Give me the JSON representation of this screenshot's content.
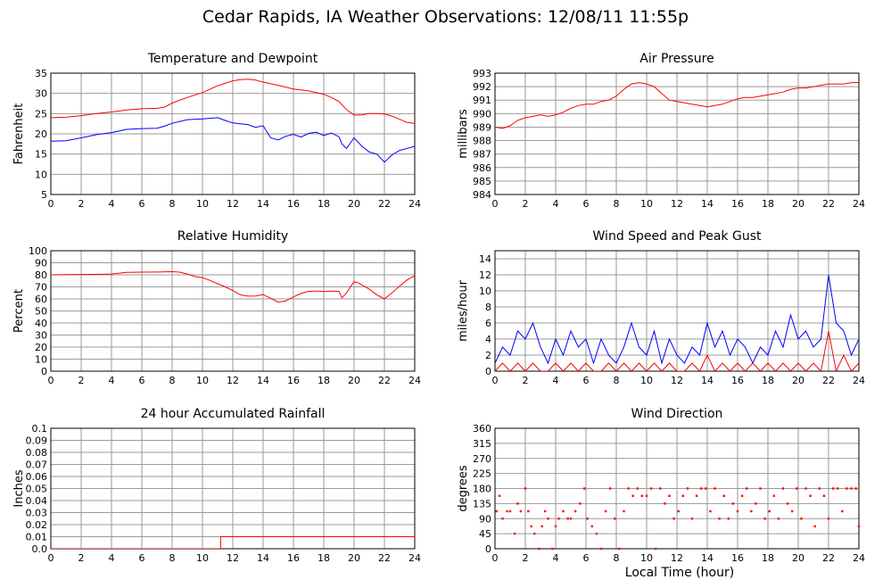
{
  "title": "Cedar Rapids, IA Weather Observations: 12/08/11 11:55p",
  "global_xlabel": "Local Time (hour)",
  "colors": {
    "red": "#ff0000",
    "blue": "#0000ff",
    "grid": "#9a9a9a"
  },
  "chart_data": [
    {
      "id": "temp",
      "type": "line",
      "title": "Temperature and Dewpoint",
      "xlabel": "",
      "ylabel": "Fahrenheit",
      "xlim": [
        0,
        24
      ],
      "ylim": [
        5,
        35
      ],
      "xticks": [
        0,
        2,
        4,
        6,
        8,
        10,
        12,
        14,
        16,
        18,
        20,
        22,
        24
      ],
      "yticks": [
        5,
        10,
        15,
        20,
        25,
        30,
        35
      ],
      "grid": true,
      "series": [
        {
          "color": "#ff0000",
          "x": [
            0,
            1,
            2,
            3,
            4,
            5,
            6,
            7,
            7.5,
            8,
            9,
            10,
            11,
            12,
            12.5,
            13,
            13.5,
            14,
            15,
            16,
            17,
            18,
            18.5,
            19,
            19.5,
            20,
            20.5,
            21,
            21.5,
            22,
            22.5,
            23,
            23.5,
            24
          ],
          "y": [
            24,
            24.1,
            24.5,
            25,
            25.4,
            25.9,
            26.2,
            26.3,
            26.6,
            27.6,
            29,
            30.2,
            31.9,
            33.1,
            33.4,
            33.5,
            33.3,
            32.8,
            32,
            31.1,
            30.6,
            29.8,
            29,
            28,
            26,
            24.6,
            24.7,
            25,
            25,
            24.9,
            24.4,
            23.6,
            22.8,
            22.6
          ]
        },
        {
          "color": "#0000ff",
          "x": [
            0,
            1,
            2,
            3,
            4,
            5,
            6,
            7,
            7.5,
            8,
            9,
            10,
            11,
            11.5,
            12,
            12.5,
            13,
            13.5,
            14,
            14.5,
            15,
            15.5,
            16,
            16.5,
            17,
            17.5,
            18,
            18.5,
            19,
            19.2,
            19.5,
            20,
            20.5,
            21,
            21.5,
            22,
            22.5,
            23,
            23.5,
            24
          ],
          "y": [
            18.2,
            18.3,
            19,
            19.8,
            20.3,
            21.1,
            21.3,
            21.4,
            21.9,
            22.6,
            23.5,
            23.7,
            24,
            23.3,
            22.7,
            22.5,
            22.3,
            21.6,
            22,
            19,
            18.5,
            19.4,
            19.9,
            19.2,
            20.1,
            20.4,
            19.6,
            20.2,
            19.3,
            17.5,
            16.4,
            19,
            17,
            15.5,
            15,
            13,
            14.8,
            15.9,
            16.4,
            16.9
          ]
        }
      ]
    },
    {
      "id": "pressure",
      "type": "line",
      "title": "Air Pressure",
      "xlabel": "",
      "ylabel": "millibars",
      "xlim": [
        0,
        24
      ],
      "ylim": [
        984,
        993
      ],
      "xticks": [
        0,
        2,
        4,
        6,
        8,
        10,
        12,
        14,
        16,
        18,
        20,
        22,
        24
      ],
      "yticks": [
        984,
        985,
        986,
        987,
        988,
        989,
        990,
        991,
        992,
        993
      ],
      "grid": true,
      "series": [
        {
          "color": "#ff0000",
          "x": [
            0,
            0.5,
            1,
            1.5,
            2,
            2.5,
            3,
            3.5,
            4,
            4.5,
            5,
            5.5,
            6,
            6.5,
            7,
            7.5,
            8,
            8.5,
            9,
            9.5,
            10,
            10.5,
            11,
            11.5,
            12,
            12.5,
            13,
            13.5,
            14,
            14.5,
            15,
            15.5,
            16,
            16.5,
            17,
            17.5,
            18,
            18.5,
            19,
            19.5,
            20,
            20.5,
            21,
            21.5,
            22,
            22.5,
            23,
            23.5,
            24
          ],
          "y": [
            989,
            988.9,
            989.1,
            989.5,
            989.7,
            989.8,
            989.9,
            989.8,
            989.9,
            990.1,
            990.4,
            990.6,
            990.7,
            990.7,
            990.9,
            991.0,
            991.3,
            991.8,
            992.2,
            992.3,
            992.2,
            992.0,
            991.5,
            991.0,
            990.9,
            990.8,
            990.7,
            990.6,
            990.5,
            990.6,
            990.7,
            990.9,
            991.1,
            991.2,
            991.2,
            991.3,
            991.4,
            991.5,
            991.6,
            991.8,
            991.9,
            991.9,
            992.0,
            992.1,
            992.2,
            992.2,
            992.2,
            992.3,
            992.3
          ]
        }
      ]
    },
    {
      "id": "rh",
      "type": "line",
      "title": "Relative Humidity",
      "xlabel": "",
      "ylabel": "Percent",
      "xlim": [
        0,
        24
      ],
      "ylim": [
        0,
        100
      ],
      "xticks": [
        0,
        2,
        4,
        6,
        8,
        10,
        12,
        14,
        16,
        18,
        20,
        22,
        24
      ],
      "yticks": [
        0,
        10,
        20,
        30,
        40,
        50,
        60,
        70,
        80,
        90,
        100
      ],
      "grid": true,
      "series": [
        {
          "color": "#ff0000",
          "x": [
            0,
            1,
            2,
            3,
            4,
            5,
            6,
            7,
            8,
            8.5,
            9,
            9.5,
            10,
            10.5,
            11,
            11.5,
            12,
            12.5,
            13,
            13.5,
            14,
            14.5,
            15,
            15.5,
            16,
            16.5,
            17,
            17.5,
            18,
            18.5,
            19,
            19.2,
            19.5,
            20,
            20.3,
            20.7,
            21,
            21.5,
            22,
            22.5,
            23,
            23.5,
            24
          ],
          "y": [
            80,
            80.2,
            80.3,
            80.4,
            80.7,
            82,
            82.2,
            82.3,
            82.6,
            82.2,
            80.7,
            78.6,
            77.7,
            75.3,
            72.6,
            70,
            67,
            63.4,
            62.3,
            62.4,
            63.6,
            60.5,
            57.3,
            58.3,
            61.6,
            64.5,
            66.3,
            66.6,
            66.1,
            66.5,
            66.3,
            60.9,
            65,
            74.4,
            73.2,
            70.2,
            68.1,
            63.4,
            60,
            65,
            70.5,
            75.8,
            79.3
          ]
        }
      ]
    },
    {
      "id": "wind",
      "type": "line",
      "title": "Wind Speed and Peak Gust",
      "xlabel": "",
      "ylabel": "miles/hour",
      "xlim": [
        0,
        24
      ],
      "ylim": [
        0,
        15
      ],
      "xticks": [
        0,
        2,
        4,
        6,
        8,
        10,
        12,
        14,
        16,
        18,
        20,
        22,
        24
      ],
      "yticks": [
        0,
        2,
        4,
        6,
        8,
        10,
        12,
        14
      ],
      "grid": true,
      "series": [
        {
          "name": "",
          "color": "#0000ff",
          "x": [
            0,
            0.5,
            1,
            1.5,
            2,
            2.5,
            3,
            3.5,
            4,
            4.5,
            5,
            5.5,
            6,
            6.5,
            7,
            7.5,
            8,
            8.5,
            9,
            9.5,
            10,
            10.5,
            11,
            11.5,
            12,
            12.5,
            13,
            13.5,
            14,
            14.5,
            15,
            15.5,
            16,
            16.5,
            17,
            17.5,
            18,
            18.5,
            19,
            19.5,
            20,
            20.5,
            21,
            21.5,
            22,
            22.5,
            23,
            23.5,
            24
          ],
          "y": [
            1,
            3,
            2,
            5,
            4,
            6,
            3,
            1,
            4,
            2,
            5,
            3,
            4,
            1,
            4,
            2,
            1,
            3,
            6,
            3,
            2,
            5,
            1,
            4,
            2,
            1,
            3,
            2,
            6,
            3,
            5,
            2,
            4,
            3,
            1,
            3,
            2,
            5,
            3,
            7,
            4,
            5,
            3,
            4,
            12,
            6,
            5,
            2,
            4
          ]
        },
        {
          "name": "",
          "color": "#ff0000",
          "x": [
            0,
            0.5,
            1,
            1.5,
            2,
            2.5,
            3,
            3.5,
            4,
            4.5,
            5,
            5.5,
            6,
            6.5,
            7,
            7.5,
            8,
            8.5,
            9,
            9.5,
            10,
            10.5,
            11,
            11.5,
            12,
            12.5,
            13,
            13.5,
            14,
            14.5,
            15,
            15.5,
            16,
            16.5,
            17,
            17.5,
            18,
            18.5,
            19,
            19.5,
            20,
            20.5,
            21,
            21.5,
            22,
            22.5,
            23,
            23.5,
            24
          ],
          "y": [
            0,
            1,
            0,
            1,
            0,
            1,
            0,
            0,
            1,
            0,
            1,
            0,
            1,
            0,
            0,
            1,
            0,
            1,
            0,
            1,
            0,
            1,
            0,
            1,
            0,
            0,
            1,
            0,
            2,
            0,
            1,
            0,
            1,
            0,
            1,
            0,
            1,
            0,
            1,
            0,
            1,
            0,
            1,
            0,
            5,
            0,
            2,
            0,
            1
          ]
        }
      ]
    },
    {
      "id": "rain",
      "type": "line",
      "title": "24 hour Accumulated Rainfall",
      "xlabel": "",
      "ylabel": "Inches",
      "xlim": [
        0,
        24
      ],
      "ylim": [
        0,
        0.1
      ],
      "xticks": [
        0,
        2,
        4,
        6,
        8,
        10,
        12,
        14,
        16,
        18,
        20,
        22,
        24
      ],
      "yticks": [
        0.0,
        0.01,
        0.02,
        0.03,
        0.04,
        0.05,
        0.06,
        0.07,
        0.08,
        0.09,
        0.1
      ],
      "ytick_labels": [
        "0.0",
        "0.01",
        "0.02",
        "0.03",
        "0.04",
        "0.05",
        "0.06",
        "0.07",
        "0.08",
        "0.09",
        "0.1"
      ],
      "grid": true,
      "series": [
        {
          "color": "#ff0000",
          "x": [
            0,
            11.2,
            11.2,
            24
          ],
          "y": [
            0,
            0,
            0.01,
            0.01
          ]
        }
      ]
    },
    {
      "id": "wdir",
      "type": "scatter",
      "title": "Wind Direction",
      "xlabel": "",
      "ylabel": "degrees",
      "xlim": [
        0,
        24
      ],
      "ylim": [
        0,
        360
      ],
      "xticks": [
        0,
        2,
        4,
        6,
        8,
        10,
        12,
        14,
        16,
        18,
        20,
        22,
        24
      ],
      "yticks": [
        0,
        45,
        90,
        135,
        180,
        225,
        270,
        315,
        360
      ],
      "grid": true,
      "series": [
        {
          "color": "#ff0000",
          "x": [
            0.1,
            0.3,
            0.5,
            0.8,
            1.0,
            1.3,
            1.5,
            1.7,
            2.0,
            2.2,
            2.4,
            2.6,
            2.9,
            3.1,
            3.3,
            3.5,
            3.8,
            4.0,
            4.2,
            4.5,
            4.8,
            5.0,
            5.3,
            5.6,
            5.9,
            6.1,
            6.4,
            6.7,
            7.0,
            7.3,
            7.6,
            7.9,
            8.2,
            8.5,
            8.8,
            9.1,
            9.4,
            9.7,
            10.0,
            10.3,
            10.6,
            10.9,
            11.2,
            11.5,
            11.8,
            12.1,
            12.4,
            12.7,
            13.0,
            13.3,
            13.6,
            13.9,
            14.2,
            14.5,
            14.8,
            15.1,
            15.4,
            15.7,
            16.0,
            16.3,
            16.6,
            16.9,
            17.2,
            17.5,
            17.8,
            18.1,
            18.4,
            18.7,
            19.0,
            19.3,
            19.6,
            19.9,
            20.2,
            20.5,
            20.8,
            21.1,
            21.4,
            21.7,
            22.0,
            22.3,
            22.6,
            22.9,
            23.2,
            23.5,
            23.8,
            24.0
          ],
          "y": [
            112,
            158,
            90,
            112,
            112,
            45,
            135,
            112,
            180,
            112,
            67,
            45,
            0,
            67,
            112,
            90,
            0,
            67,
            90,
            112,
            90,
            90,
            112,
            135,
            180,
            90,
            67,
            45,
            0,
            112,
            180,
            90,
            0,
            112,
            180,
            158,
            180,
            158,
            158,
            180,
            0,
            180,
            135,
            158,
            90,
            112,
            158,
            180,
            90,
            158,
            180,
            180,
            112,
            180,
            90,
            158,
            90,
            135,
            112,
            158,
            180,
            112,
            135,
            180,
            90,
            112,
            158,
            90,
            180,
            135,
            112,
            180,
            90,
            180,
            158,
            67,
            180,
            158,
            90,
            180,
            180,
            112,
            180,
            180,
            180,
            67
          ]
        }
      ]
    }
  ]
}
